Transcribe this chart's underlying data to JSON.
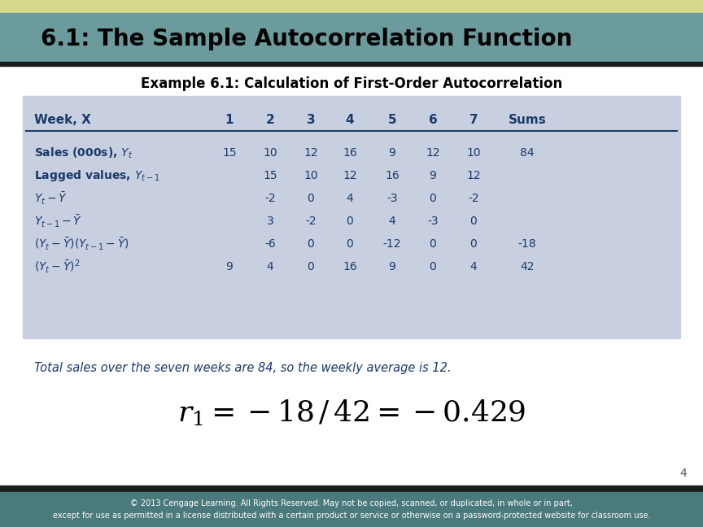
{
  "title": "6.1: The Sample Autocorrelation Function",
  "title_bg_color": "#6b9b9d",
  "title_top_stripe_color": "#d4d98a",
  "title_text_color": "#000000",
  "subtitle": "Example 6.1: Calculation of First-Order Autocorrelation",
  "subtitle_color": "#000000",
  "table_bg_color": "#c8cfe0",
  "table_text_color": "#1a3a6b",
  "table_header_row": [
    "Week, X",
    "1",
    "2",
    "3",
    "4",
    "5",
    "6",
    "7",
    "Sums"
  ],
  "table_rows_plain": [
    [
      "Sales (000s), Y_t",
      "15",
      "10",
      "12",
      "16",
      "9",
      "12",
      "10",
      "84"
    ],
    [
      "Lagged values, Y_{t-1}",
      "",
      "15",
      "10",
      "12",
      "16",
      "9",
      "12",
      ""
    ],
    [
      "Y_t - Y-bar",
      "",
      "-2",
      "0",
      "4",
      "-3",
      "0",
      "-2",
      ""
    ],
    [
      "Y_{t-1} - Y-bar",
      "",
      "3",
      "-2",
      "0",
      "4",
      "-3",
      "0",
      ""
    ],
    [
      "(Y_t - Y-bar)(Y_{t-1} - Y-bar)",
      "",
      "-6",
      "0",
      "0",
      "-12",
      "0",
      "0",
      "-18"
    ],
    [
      "(Y_t - Y-bar)^2",
      "9",
      "4",
      "0",
      "16",
      "9",
      "0",
      "4",
      "42"
    ]
  ],
  "table_rows_math": [
    [
      "Sales (000s), $Y_t$",
      true
    ],
    [
      "Lagged values, $Y_{t-1}$",
      true
    ],
    [
      "$Y_t - \\bar{Y}$",
      false
    ],
    [
      "$Y_{t-1} - \\bar{Y}$",
      false
    ],
    [
      "$(Y_t - \\bar{Y})(Y_{t-1} - \\bar{Y})$",
      false
    ],
    [
      "$(Y_t - \\bar{Y})^2$",
      false
    ]
  ],
  "note_text": "Total sales over the seven weeks are 84, so the weekly average is 12.",
  "note_color": "#1a3a6b",
  "page_number": "4",
  "footer_bg_color": "#4a7a7c",
  "footer_text_line1": "© 2013 Cengage Learning. All Rights Reserved. May not be copied, scanned, or duplicated, in whole or in part,",
  "footer_text_line2": "except for use as permitted in a license distributed with a certain product or service or otherwise on a password-protected website for classroom use.",
  "footer_text_color": "#ffffff"
}
